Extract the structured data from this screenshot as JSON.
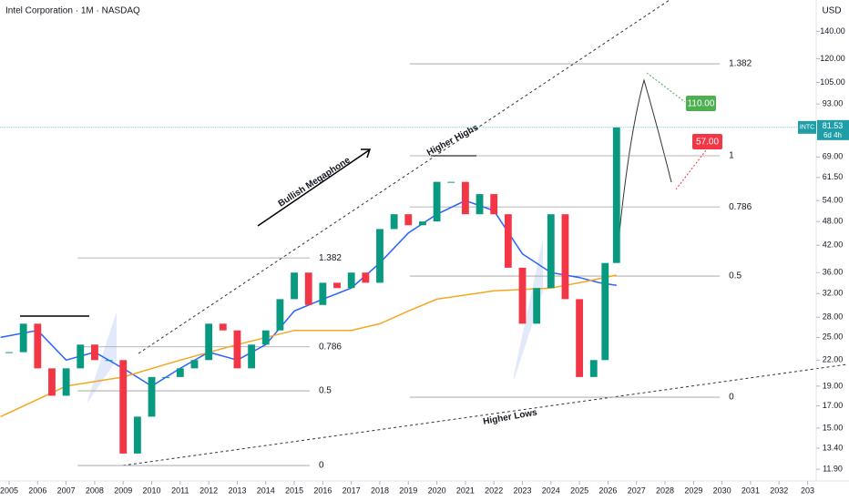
{
  "chart_data": {
    "type": "candlestick",
    "title": "Intel Corporation · 1M · NASDAQ",
    "currency": "USD",
    "log_scale": true,
    "up_color": "#089981",
    "down_color": "#f23645",
    "x": [
      2005.0,
      2005.5,
      2006.0,
      2006.5,
      2007.0,
      2007.5,
      2008.0,
      2008.5,
      2009.0,
      2009.5,
      2010.0,
      2010.5,
      2011.0,
      2011.5,
      2012.0,
      2012.5,
      2013.0,
      2013.5,
      2014.0,
      2014.5,
      2015.0,
      2015.5,
      2016.0,
      2016.5,
      2017.0,
      2017.5,
      2018.0,
      2018.5,
      2019.0,
      2019.5,
      2020.0,
      2020.5,
      2021.0,
      2021.5,
      2022.0,
      2022.5,
      2023.0,
      2023.5,
      2024.0,
      2024.5,
      2025.0,
      2025.5,
      2025.9,
      2026.3
    ],
    "values": [
      23,
      27,
      21,
      18,
      21,
      24,
      22,
      22,
      13,
      16,
      20,
      20,
      21,
      22,
      27,
      26,
      21,
      24,
      26,
      31,
      36,
      30,
      34,
      33,
      36,
      34,
      46,
      50,
      47,
      48,
      60,
      60,
      50,
      56,
      50,
      37,
      27,
      33,
      50,
      31,
      20,
      22,
      38,
      81.53
    ],
    "moving_averages": [
      {
        "color": "#2962ff",
        "x": [
          2004.7,
          2006,
          2007,
          2008,
          2009,
          2010,
          2011,
          2012,
          2013,
          2014,
          2015,
          2016,
          2017,
          2018,
          2019,
          2020,
          2021,
          2022,
          2023,
          2024,
          2025,
          2025.7,
          2026.3
        ],
        "values": [
          25,
          26,
          22,
          23,
          21,
          19,
          21,
          23,
          22,
          24,
          29,
          31,
          33,
          38,
          45,
          50,
          54,
          51,
          40,
          36,
          35,
          34,
          33.5
        ]
      },
      {
        "color": "#f5a623",
        "x": [
          2004.7,
          2007,
          2009,
          2011,
          2013,
          2015,
          2017,
          2018,
          2019,
          2020,
          2022,
          2024,
          2025,
          2026.3
        ],
        "values": [
          16,
          19,
          20,
          22,
          24,
          26,
          26,
          27,
          29,
          31,
          32.5,
          33,
          34,
          35.5
        ]
      }
    ],
    "xlim": [
      2004.68,
      2033.27
    ],
    "ylim": [
      11.14,
      167
    ],
    "xticks": [
      2005,
      2006,
      2007,
      2008,
      2009,
      2010,
      2011,
      2012,
      2013,
      2014,
      2015,
      2016,
      2017,
      2018,
      2019,
      2020,
      2021,
      2022,
      2023,
      2024,
      2025,
      2026,
      2027,
      2028,
      2029,
      2030,
      2031,
      2032,
      {
        "value": 2033,
        "label": "203"
      }
    ],
    "yticks": [
      {
        "value": 11.9,
        "label": "11.90"
      },
      {
        "value": 13.4,
        "label": "13.40"
      },
      {
        "value": 15,
        "label": "15.00"
      },
      {
        "value": 17,
        "label": "17.00"
      },
      {
        "value": 19,
        "label": "19.00"
      },
      {
        "value": 22,
        "label": "22.00"
      },
      {
        "value": 25,
        "label": "25.00"
      },
      {
        "value": 28,
        "label": "28.00"
      },
      {
        "value": 32,
        "label": "32.00"
      },
      {
        "value": 36,
        "label": "36.00"
      },
      {
        "value": 42,
        "label": "42.00"
      },
      {
        "value": 48,
        "label": "48.00"
      },
      {
        "value": 54,
        "label": "54.00"
      },
      {
        "value": 61.5,
        "label": "61.50"
      },
      {
        "value": 69,
        "label": "69.00"
      },
      {
        "value": 93,
        "label": "93.00"
      },
      {
        "value": 105,
        "label": "105.00"
      },
      {
        "value": 120,
        "label": "120.00"
      },
      {
        "value": 140,
        "label": "140.00"
      }
    ],
    "fib_sets": [
      {
        "x": [
          2007.4,
          2015.54
        ],
        "levels": [
          {
            "label": "1.382",
            "price": 39.1
          },
          {
            "label": "0.786",
            "price": 23.7
          },
          {
            "label": "0.5",
            "price": 18.5
          },
          {
            "label": "0",
            "price": 12.15
          }
        ]
      },
      {
        "x": [
          2019.05,
          2029.92
        ],
        "levels": [
          {
            "label": "1.382",
            "price": 116.6
          },
          {
            "label": "1",
            "price": 69.5
          },
          {
            "label": "0.786",
            "price": 52.1
          },
          {
            "label": "0.5",
            "price": 35.3
          },
          {
            "label": "0",
            "price": 17.85
          }
        ]
      }
    ],
    "annotations": [
      "Bullish Megaphone",
      "Higher Highs",
      "Higher Lows"
    ],
    "targets": [
      {
        "value": 110,
        "label": "110.00",
        "color": "#4caf50"
      },
      {
        "value": 57,
        "label": "57.00",
        "color": "#f23645"
      }
    ],
    "ticker": "INTC",
    "last_price": 81.53,
    "countdown": "6d 4h"
  }
}
